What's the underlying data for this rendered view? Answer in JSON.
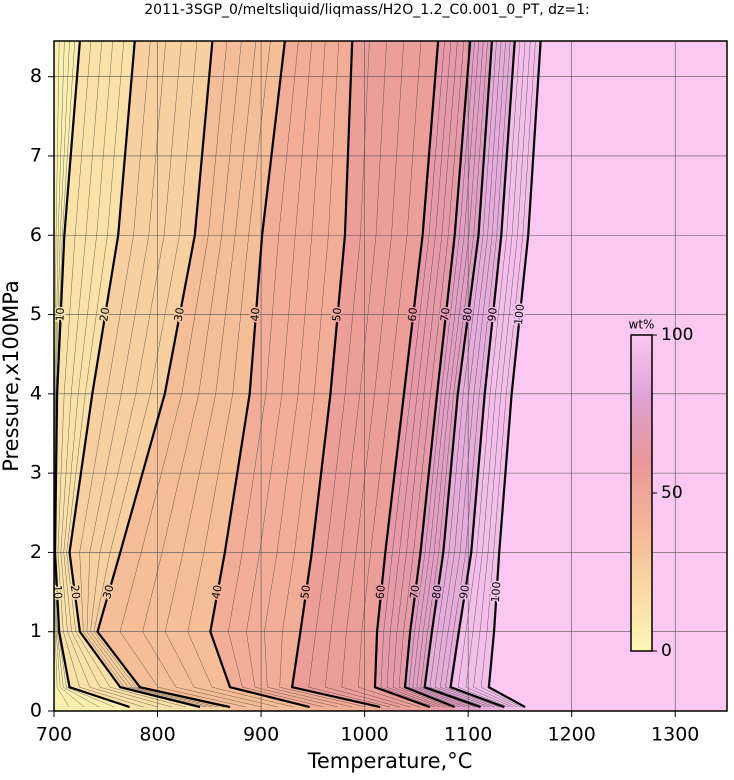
{
  "chart_data": {
    "type": "contour",
    "title": "2011-3SGP_0/meltsliquid/liqmass/H2O_1.2_C0.001_0_PT, dz=1:",
    "x_label": "Temperature,°C",
    "y_label": "Pressure,x100MPa",
    "xlim": [
      700,
      1350
    ],
    "xticks": [
      700,
      800,
      900,
      1000,
      1100,
      1200,
      1300
    ],
    "ylim": [
      0,
      8.45
    ],
    "yticks": [
      0,
      1,
      2,
      3,
      4,
      5,
      6,
      7,
      8
    ],
    "grid": true,
    "contours": [
      {
        "level": 10,
        "x": [
          725,
          710,
          703,
          701,
          705,
          715,
          773
        ],
        "y": [
          8.45,
          6,
          4,
          2,
          1,
          0.3,
          0.05
        ]
      },
      {
        "level": 20,
        "x": [
          778,
          762,
          737,
          715,
          725,
          764,
          841
        ],
        "y": [
          8.45,
          6,
          4,
          2,
          1,
          0.3,
          0.05
        ]
      },
      {
        "level": 30,
        "x": [
          853,
          836,
          807,
          764,
          742,
          783,
          870
        ],
        "y": [
          8.45,
          6,
          4,
          2,
          1,
          0.3,
          0.05
        ]
      },
      {
        "level": 40,
        "x": [
          923,
          901,
          889,
          865,
          851,
          870,
          947
        ],
        "y": [
          8.45,
          6,
          4,
          2,
          1,
          0.3,
          0.05
        ]
      },
      {
        "level": 50,
        "x": [
          988,
          981,
          967,
          949,
          938,
          930,
          1015
        ],
        "y": [
          8.45,
          6,
          4,
          2,
          1,
          0.3,
          0.05
        ]
      },
      {
        "level": 60,
        "x": [
          1071,
          1056,
          1038,
          1020,
          1012,
          1010,
          1063
        ],
        "y": [
          8.45,
          6,
          4,
          2,
          1,
          0.3,
          0.05
        ]
      },
      {
        "level": 70,
        "x": [
          1102,
          1087,
          1070,
          1054,
          1044,
          1039,
          1087
        ],
        "y": [
          8.45,
          6,
          4,
          2,
          1,
          0.3,
          0.05
        ]
      },
      {
        "level": 80,
        "x": [
          1123,
          1110,
          1090,
          1076,
          1065,
          1058,
          1112
        ],
        "y": [
          8.45,
          6,
          4,
          2,
          1,
          0.3,
          0.05
        ]
      },
      {
        "level": 90,
        "x": [
          1145,
          1132,
          1116,
          1103,
          1091,
          1083,
          1135
        ],
        "y": [
          8.45,
          6,
          4,
          2,
          1,
          0.3,
          0.05
        ]
      },
      {
        "level": 100,
        "x": [
          1170,
          1158,
          1142,
          1130,
          1125,
          1120,
          1155
        ],
        "y": [
          8.45,
          6,
          4,
          2,
          1,
          0.3,
          0.05
        ]
      }
    ],
    "colorbar": {
      "label": "wt%",
      "clim": [
        0,
        100
      ],
      "ticks": [
        0,
        50,
        100
      ],
      "colors": [
        "#fdf7b4",
        "#f9d9a2",
        "#f5b496",
        "#e99799",
        "#dfa2d2",
        "#fac8f0"
      ]
    }
  }
}
